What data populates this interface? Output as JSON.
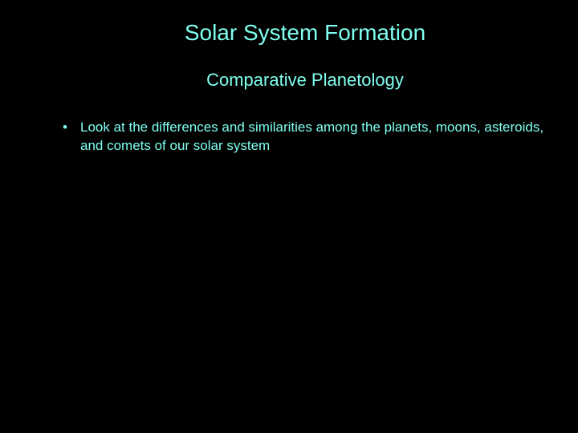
{
  "slide": {
    "title": "Solar System Formation",
    "subtitle": "Comparative Planetology",
    "bullets": [
      "Look at the differences and similarities among the planets, moons, asteroids, and comets of our solar system"
    ]
  },
  "colors": {
    "background": "#000000",
    "title_color": "#7FFFF0",
    "subtitle_color": "#7FFFF0",
    "bullet_text_color": "#7FFFF0",
    "bullet_marker_color": "#7FFFF0"
  },
  "typography": {
    "title_fontsize": 28,
    "subtitle_fontsize": 22,
    "bullet_fontsize": 17,
    "font_family": "Arial"
  }
}
